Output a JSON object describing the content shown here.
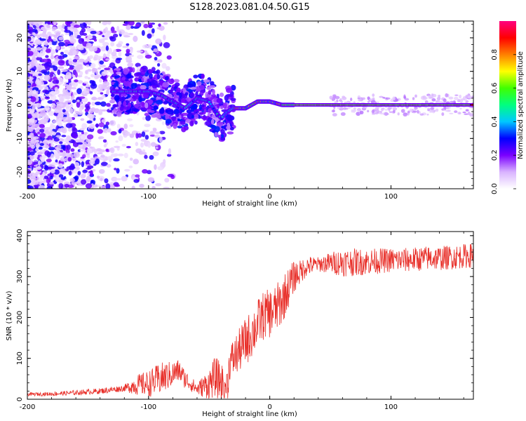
{
  "title": "S128.2023.081.04.50.G15",
  "chart_data": [
    {
      "type": "heatmap",
      "name": "spectrogram",
      "xlabel": "Height of straight line (km)",
      "ylabel": "Frequency (Hz)",
      "xlim": [
        -200,
        168
      ],
      "ylim": [
        -25,
        25
      ],
      "xticks": [
        -200,
        -100,
        0,
        100
      ],
      "xtick_labels": [
        "-200",
        "-100",
        "0",
        "100"
      ],
      "yticks": [
        -20,
        -10,
        0,
        10,
        20
      ],
      "ytick_labels": [
        "-20",
        "-10",
        "0",
        "10",
        "20"
      ],
      "colorbar": {
        "label": "Normalized spectral amplitude",
        "range": [
          0,
          1
        ],
        "ticks": [
          0.0,
          0.2,
          0.4,
          0.6,
          0.8
        ],
        "tick_labels": [
          "0.0",
          "0.2",
          "0.4",
          "0.6",
          "0.8"
        ],
        "colormap": [
          "#ffffff",
          "#d9b3ff",
          "#7a00ff",
          "#0000ff",
          "#00c8ff",
          "#00ff80",
          "#40ff00",
          "#ffff00",
          "#ff8000",
          "#ff0000",
          "#ff0080"
        ]
      },
      "carrier_frequency_track": {
        "x": [
          -120,
          -110,
          -100,
          -90,
          -80,
          -70,
          -60,
          -50,
          -45,
          -40,
          -35,
          -30,
          -20,
          -10,
          0,
          10,
          20,
          50,
          100,
          168
        ],
        "y": [
          4,
          4,
          4,
          3,
          1,
          -1,
          2,
          1,
          -2,
          -4,
          -2,
          -1,
          -1,
          1,
          1,
          0,
          0,
          0,
          0,
          0
        ]
      }
    },
    {
      "type": "line",
      "name": "snr",
      "xlabel": "Height of straight line (km)",
      "ylabel": "SNR (10 * v/v)",
      "xlim": [
        -200,
        168
      ],
      "ylim": [
        0,
        410
      ],
      "xticks": [
        -200,
        -100,
        0,
        100
      ],
      "xtick_labels": [
        "-200",
        "-100",
        "0",
        "100"
      ],
      "yticks": [
        0,
        100,
        200,
        300,
        400
      ],
      "ytick_labels": [
        "0",
        "100",
        "200",
        "300",
        "400"
      ],
      "color": "#e8302a",
      "series": [
        {
          "name": "SNR",
          "x": [
            -200,
            -180,
            -160,
            -140,
            -120,
            -110,
            -100,
            -90,
            -80,
            -75,
            -70,
            -60,
            -50,
            -45,
            -40,
            -35,
            -33,
            -30,
            -25,
            -20,
            -15,
            -10,
            -5,
            0,
            5,
            10,
            15,
            20,
            25,
            30,
            40,
            50,
            60,
            70,
            80,
            90,
            100,
            110,
            120,
            130,
            140,
            150,
            160,
            168
          ],
          "y": [
            12,
            13,
            16,
            20,
            27,
            35,
            38,
            50,
            62,
            70,
            50,
            25,
            38,
            55,
            42,
            35,
            90,
            100,
            120,
            140,
            160,
            185,
            205,
            210,
            220,
            240,
            270,
            300,
            310,
            325,
            330,
            333,
            335,
            335,
            336,
            338,
            340,
            340,
            342,
            345,
            345,
            347,
            350,
            352
          ]
        }
      ],
      "noise_amplitude": [
        [
          -200,
          4
        ],
        [
          -120,
          8
        ],
        [
          -110,
          25
        ],
        [
          -90,
          40
        ],
        [
          -60,
          15
        ],
        [
          -45,
          50
        ],
        [
          -33,
          45
        ],
        [
          -20,
          60
        ],
        [
          -5,
          60
        ],
        [
          10,
          60
        ],
        [
          25,
          30
        ],
        [
          40,
          18
        ],
        [
          60,
          35
        ],
        [
          100,
          30
        ],
        [
          168,
          30
        ]
      ]
    }
  ]
}
